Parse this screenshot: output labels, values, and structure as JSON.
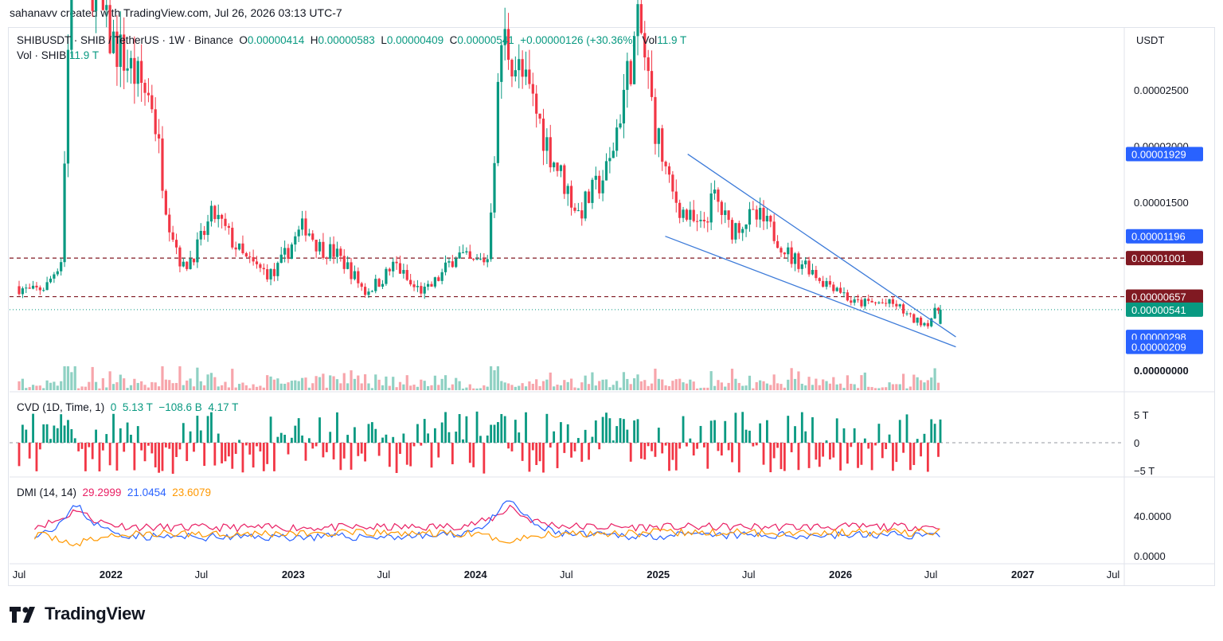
{
  "caption": "sahanavv created with TradingView.com, Jul 26, 2026 03:13 UTC-7",
  "brand": "TradingView",
  "legend": {
    "symbol": "SHIBUSDT · SHIB / TetherUS · 1W · Binance",
    "o_label": "O",
    "o": "0.00000414",
    "h_label": "H",
    "h": "0.00000583",
    "l_label": "L",
    "l": "0.00000409",
    "c_label": "C",
    "c": "0.00000541",
    "change": "+0.00000126 (+30.36%)",
    "vol_label": "Vol",
    "vol": "11.9 T",
    "vol2_label": "Vol · SHIB",
    "vol2": "11.9 T",
    "cvd_label": "CVD (1D, Time, 1)",
    "cvd_vals": [
      "0",
      "5.13 T",
      "−108.6 B",
      "4.17 T"
    ],
    "dmi_label": "DMI (14, 14)",
    "dmi_vals": [
      "29.2999",
      "21.0454",
      "23.6079"
    ]
  },
  "currency": "USDT",
  "price_axis": {
    "ticks": [
      {
        "label": "0.00002500",
        "value": 2.5e-05
      },
      {
        "label": "0.00002000",
        "value": 2e-05
      },
      {
        "label": "0.00001500",
        "value": 1.5e-05
      },
      {
        "label": "0.00000000",
        "value": 0
      }
    ],
    "badges": [
      {
        "label": "0.00001929",
        "value": 1.929e-05,
        "color": "#2962ff"
      },
      {
        "label": "0.00001196",
        "value": 1.196e-05,
        "color": "#2962ff"
      },
      {
        "label": "0.00001001",
        "value": 1.001e-05,
        "color": "#801922"
      },
      {
        "label": "0.00000657",
        "value": 6.57e-06,
        "color": "#801922"
      },
      {
        "label": "0.00000541",
        "value": 5.41e-06,
        "color": "#089981"
      },
      {
        "label": "0.00000298",
        "value": 2.98e-06,
        "color": "#2962ff"
      },
      {
        "label": "0.00000209",
        "value": 2.09e-06,
        "color": "#2962ff"
      }
    ]
  },
  "cvd_axis": [
    {
      "label": "5 T",
      "value": 5
    },
    {
      "label": "0",
      "value": 0
    },
    {
      "label": "−5 T",
      "value": -5
    }
  ],
  "dmi_axis": [
    {
      "label": "40.0000",
      "value": 40
    },
    {
      "label": "0.0000",
      "value": 0
    }
  ],
  "time_axis": [
    {
      "label": "Jul",
      "date": "2021-07-01",
      "bold": false
    },
    {
      "label": "2022",
      "date": "2022-01-01",
      "bold": true
    },
    {
      "label": "Jul",
      "date": "2022-07-01",
      "bold": false
    },
    {
      "label": "2023",
      "date": "2023-01-01",
      "bold": true
    },
    {
      "label": "Jul",
      "date": "2023-07-01",
      "bold": false
    },
    {
      "label": "2024",
      "date": "2024-01-01",
      "bold": true
    },
    {
      "label": "Jul",
      "date": "2024-07-01",
      "bold": false
    },
    {
      "label": "2025",
      "date": "2025-01-01",
      "bold": true
    },
    {
      "label": "Jul",
      "date": "2025-07-01",
      "bold": false
    },
    {
      "label": "2026",
      "date": "2026-01-01",
      "bold": true
    },
    {
      "label": "Jul",
      "date": "2026-07-01",
      "bold": false
    },
    {
      "label": "2027",
      "date": "2027-01-01",
      "bold": true
    },
    {
      "label": "Jul",
      "date": "2027-07-01",
      "bold": false
    }
  ],
  "colors": {
    "up": "#089981",
    "down": "#f23645",
    "wedge": "#3d7bd9",
    "level": "#801922",
    "plus_di": "#e91e63",
    "minus_di": "#2962ff",
    "adx": "#ff9800"
  },
  "chart_data": {
    "type": "candlestick",
    "symbol": "SHIBUSDT",
    "timeframe": "1W",
    "last": {
      "date": "2026-07-20",
      "open": 4.14e-06,
      "high": 5.83e-06,
      "low": 4.09e-06,
      "close": 5.41e-06,
      "volume": "11.9 T"
    },
    "horizontal_levels": [
      1.001e-05,
      6.57e-06
    ],
    "current_price_line": 5.41e-06,
    "wedge_upper": [
      {
        "date": "2025-03-01",
        "price": 1.929e-05
      },
      {
        "date": "2026-08-20",
        "price": 2.98e-06
      }
    ],
    "wedge_lower": [
      {
        "date": "2025-01-15",
        "price": 1.196e-05
      },
      {
        "date": "2026-08-20",
        "price": 2.09e-06
      }
    ],
    "price_path": [
      [
        "2021-07-01",
        7.5e-06
      ],
      [
        "2021-08-01",
        7e-06
      ],
      [
        "2021-09-01",
        7.5e-06
      ],
      [
        "2021-10-01",
        1e-05
      ],
      [
        "2021-10-15",
        3e-05
      ],
      [
        "2021-11-01",
        4.5e-05
      ],
      [
        "2021-12-01",
        3.5e-05
      ],
      [
        "2022-01-01",
        3e-05
      ],
      [
        "2022-02-01",
        2.8e-05
      ],
      [
        "2022-03-01",
        2.6e-05
      ],
      [
        "2022-04-01",
        2.4e-05
      ],
      [
        "2022-05-01",
        1.4e-05
      ],
      [
        "2022-06-01",
        9e-06
      ],
      [
        "2022-07-01",
        1.1e-05
      ],
      [
        "2022-08-01",
        1.4e-05
      ],
      [
        "2022-09-01",
        1.2e-05
      ],
      [
        "2022-10-01",
        1e-05
      ],
      [
        "2022-11-01",
        9e-06
      ],
      [
        "2022-12-01",
        8.5e-06
      ],
      [
        "2023-01-01",
        1.1e-05
      ],
      [
        "2023-02-01",
        1.3e-05
      ],
      [
        "2023-03-01",
        1.1e-05
      ],
      [
        "2023-04-01",
        1.05e-05
      ],
      [
        "2023-05-01",
        9e-06
      ],
      [
        "2023-06-01",
        7e-06
      ],
      [
        "2023-07-01",
        8e-06
      ],
      [
        "2023-08-01",
        9.5e-06
      ],
      [
        "2023-09-01",
        7.5e-06
      ],
      [
        "2023-10-01",
        7e-06
      ],
      [
        "2023-11-01",
        8.5e-06
      ],
      [
        "2023-12-01",
        1.05e-05
      ],
      [
        "2024-01-01",
        9.5e-06
      ],
      [
        "2024-02-01",
        1e-05
      ],
      [
        "2024-03-01",
        3e-05
      ],
      [
        "2024-04-01",
        2.7e-05
      ],
      [
        "2024-05-01",
        2.4e-05
      ],
      [
        "2024-06-01",
        2e-05
      ],
      [
        "2024-07-01",
        1.7e-05
      ],
      [
        "2024-08-01",
        1.4e-05
      ],
      [
        "2024-09-01",
        1.6e-05
      ],
      [
        "2024-10-01",
        1.8e-05
      ],
      [
        "2024-11-01",
        2.5e-05
      ],
      [
        "2024-12-01",
        3.1e-05
      ],
      [
        "2025-01-01",
        2.2e-05
      ],
      [
        "2025-02-01",
        1.6e-05
      ],
      [
        "2025-03-01",
        1.4e-05
      ],
      [
        "2025-04-01",
        1.25e-05
      ],
      [
        "2025-05-01",
        1.55e-05
      ],
      [
        "2025-06-01",
        1.25e-05
      ],
      [
        "2025-07-01",
        1.35e-05
      ],
      [
        "2025-08-01",
        1.35e-05
      ],
      [
        "2025-09-01",
        1.2e-05
      ],
      [
        "2025-10-01",
        1e-05
      ],
      [
        "2025-11-01",
        9.5e-06
      ],
      [
        "2025-12-01",
        8e-06
      ],
      [
        "2026-01-01",
        7.5e-06
      ],
      [
        "2026-02-01",
        6e-06
      ],
      [
        "2026-03-01",
        6e-06
      ],
      [
        "2026-04-01",
        6e-06
      ],
      [
        "2026-05-01",
        5.8e-06
      ],
      [
        "2026-06-01",
        4.5e-06
      ],
      [
        "2026-07-01",
        4.2e-06
      ],
      [
        "2026-07-20",
        5.41e-06
      ]
    ]
  }
}
